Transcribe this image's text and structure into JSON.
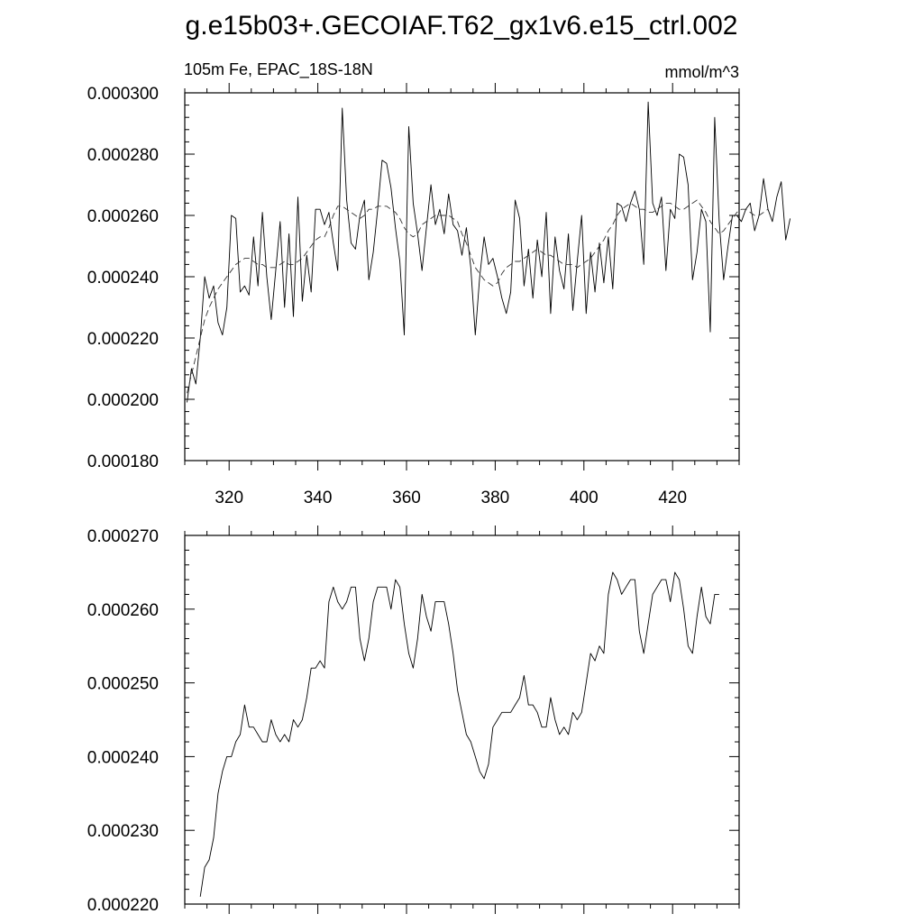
{
  "figure": {
    "title": "g.e15b03+.GECOIAF.T62_gx1v6.e15_ctrl.002",
    "left_label": "105m Fe, EPAC_18S-18N",
    "right_label": "mmol/m^3"
  },
  "chart_data": [
    {
      "type": "line",
      "xlim": [
        310,
        435
      ],
      "ylim": [
        0.00018,
        0.0003
      ],
      "x_ticks": [
        320,
        340,
        360,
        380,
        400,
        420
      ],
      "x_tick_labels": [
        "320",
        "340",
        "360",
        "380",
        "400",
        "420"
      ],
      "y_ticks": [
        0.00018,
        0.0002,
        0.00022,
        0.00024,
        0.00026,
        0.00028,
        0.0003
      ],
      "y_tick_labels": [
        "0.000180",
        "0.000200",
        "0.000220",
        "0.000240",
        "0.000260",
        "0.000280",
        "0.000300"
      ],
      "x_start": 310.5,
      "x_step": 1,
      "series": [
        {
          "style": "solid",
          "values": [
            0.000199,
            0.00021,
            0.000205,
            0.00022,
            0.00024,
            0.000233,
            0.000237,
            0.000225,
            0.000221,
            0.00023,
            0.00026,
            0.000259,
            0.000235,
            0.000237,
            0.000234,
            0.000253,
            0.000237,
            0.000261,
            0.00024,
            0.000226,
            0.000242,
            0.000258,
            0.00023,
            0.000254,
            0.000227,
            0.000266,
            0.000232,
            0.000247,
            0.000235,
            0.000262,
            0.000262,
            0.000257,
            0.000261,
            0.000251,
            0.000242,
            0.000295,
            0.000265,
            0.000251,
            0.000249,
            0.00026,
            0.000265,
            0.000239,
            0.000248,
            0.000262,
            0.000278,
            0.000277,
            0.000269,
            0.000256,
            0.000245,
            0.000221,
            0.000289,
            0.000264,
            0.000254,
            0.000242,
            0.000256,
            0.00027,
            0.000257,
            0.000262,
            0.000254,
            0.000267,
            0.000257,
            0.000255,
            0.000247,
            0.000256,
            0.000243,
            0.000221,
            0.00024,
            0.000253,
            0.000244,
            0.000246,
            0.00024,
            0.000233,
            0.000228,
            0.000235,
            0.000265,
            0.000259,
            0.000237,
            0.000249,
            0.000233,
            0.000252,
            0.00024,
            0.000261,
            0.000228,
            0.000253,
            0.000242,
            0.000236,
            0.000254,
            0.000229,
            0.000245,
            0.00026,
            0.000228,
            0.000248,
            0.000235,
            0.000251,
            0.000238,
            0.000253,
            0.000236,
            0.000264,
            0.000263,
            0.000258,
            0.000264,
            0.000268,
            0.000262,
            0.000244,
            0.000297,
            0.000264,
            0.00026,
            0.000266,
            0.000242,
            0.000262,
            0.000259,
            0.00028,
            0.000279,
            0.00027,
            0.000239,
            0.000248,
            0.000262,
            0.000258,
            0.000222,
            0.000292,
            0.000258,
            0.000239,
            0.00025,
            0.00026,
            0.00026,
            0.000258,
            0.000262,
            0.000264,
            0.000255,
            0.00026,
            0.000272,
            0.000262,
            0.000258,
            0.000266,
            0.000271,
            0.000252,
            0.000259
          ]
        },
        {
          "style": "dashed",
          "values": [
            0.000202,
            0.000208,
            0.000214,
            0.00022,
            0.000226,
            0.00023,
            0.000233,
            0.000236,
            0.000238,
            0.00024,
            0.000242,
            0.000244,
            0.000245,
            0.000246,
            0.000246,
            0.000245,
            0.000244,
            0.000244,
            0.000243,
            0.000243,
            0.000243,
            0.000244,
            0.000245,
            0.000244,
            0.000244,
            0.000245,
            0.000246,
            0.000248,
            0.00025,
            0.000252,
            0.000253,
            0.000253,
            0.000256,
            0.00026,
            0.000263,
            0.000263,
            0.000262,
            0.000261,
            0.00026,
            0.000259,
            0.00026,
            0.000262,
            0.000262,
            0.000263,
            0.000263,
            0.000263,
            0.000262,
            0.000261,
            0.000259,
            0.000256,
            0.000254,
            0.000253,
            0.000254,
            0.000257,
            0.000258,
            0.000259,
            0.00026,
            0.00026,
            0.00026,
            0.00026,
            0.000259,
            0.000258,
            0.000254,
            0.000251,
            0.000247,
            0.000243,
            0.000241,
            0.000239,
            0.000238,
            0.000237,
            0.000238,
            0.000241,
            0.000243,
            0.000244,
            0.000245,
            0.000245,
            0.000246,
            0.000247,
            0.000248,
            0.000249,
            0.000248,
            0.000247,
            0.000247,
            0.000246,
            0.000245,
            0.000244,
            0.000244,
            0.000244,
            0.000243,
            0.000244,
            0.000245,
            0.000246,
            0.000248,
            0.00025,
            0.000252,
            0.000255,
            0.000257,
            0.00026,
            0.000262,
            0.000263,
            0.000264,
            0.000263,
            0.000262,
            0.000262,
            0.000261,
            0.000261,
            0.000262,
            0.000263,
            0.000264,
            0.000264,
            0.000263,
            0.000262,
            0.000262,
            0.000263,
            0.000264,
            0.000265,
            0.000263,
            0.000261,
            0.000258,
            0.000256,
            0.000254,
            0.000255,
            0.000257,
            0.000259,
            0.000261,
            0.000262,
            0.000262,
            0.000261,
            0.00026,
            0.00026,
            0.000261,
            0.000262
          ]
        }
      ]
    },
    {
      "type": "line",
      "xlim": [
        310,
        435
      ],
      "ylim": [
        0.00022,
        0.00027
      ],
      "x_ticks": [
        320,
        340,
        360,
        380,
        400,
        420
      ],
      "x_tick_labels": [],
      "y_ticks": [
        0.00022,
        0.00023,
        0.00024,
        0.00025,
        0.00026,
        0.00027
      ],
      "y_tick_labels": [
        "0.000220",
        "0.000230",
        "0.000240",
        "0.000250",
        "0.000260",
        "0.000270"
      ],
      "x_start": 313.5,
      "x_step": 1,
      "series": [
        {
          "style": "solid",
          "values": [
            0.000221,
            0.000225,
            0.000226,
            0.000229,
            0.000235,
            0.000238,
            0.00024,
            0.00024,
            0.000242,
            0.000243,
            0.000247,
            0.000244,
            0.000244,
            0.000243,
            0.000242,
            0.000242,
            0.000245,
            0.000243,
            0.000242,
            0.000243,
            0.000242,
            0.000245,
            0.000244,
            0.000245,
            0.000248,
            0.000252,
            0.000252,
            0.000253,
            0.000252,
            0.000261,
            0.000263,
            0.000261,
            0.00026,
            0.000261,
            0.000263,
            0.000263,
            0.000256,
            0.000253,
            0.000256,
            0.000261,
            0.000263,
            0.000263,
            0.000263,
            0.00026,
            0.000264,
            0.000263,
            0.000258,
            0.000254,
            0.000252,
            0.000256,
            0.000262,
            0.000259,
            0.000257,
            0.000261,
            0.000261,
            0.000261,
            0.000258,
            0.000254,
            0.000249,
            0.000246,
            0.000243,
            0.000242,
            0.00024,
            0.000238,
            0.000237,
            0.000239,
            0.000244,
            0.000245,
            0.000246,
            0.000246,
            0.000246,
            0.000247,
            0.000248,
            0.000251,
            0.000247,
            0.000247,
            0.000246,
            0.000244,
            0.000244,
            0.000248,
            0.000245,
            0.000243,
            0.000244,
            0.000243,
            0.000246,
            0.000245,
            0.000246,
            0.00025,
            0.000254,
            0.000253,
            0.000255,
            0.000254,
            0.000262,
            0.000265,
            0.000264,
            0.000262,
            0.000263,
            0.000264,
            0.000264,
            0.000257,
            0.000254,
            0.000258,
            0.000262,
            0.000263,
            0.000264,
            0.000264,
            0.000261,
            0.000265,
            0.000264,
            0.00026,
            0.000255,
            0.000254,
            0.000259,
            0.000263,
            0.000259,
            0.000258,
            0.000262,
            0.000262
          ]
        }
      ]
    }
  ]
}
